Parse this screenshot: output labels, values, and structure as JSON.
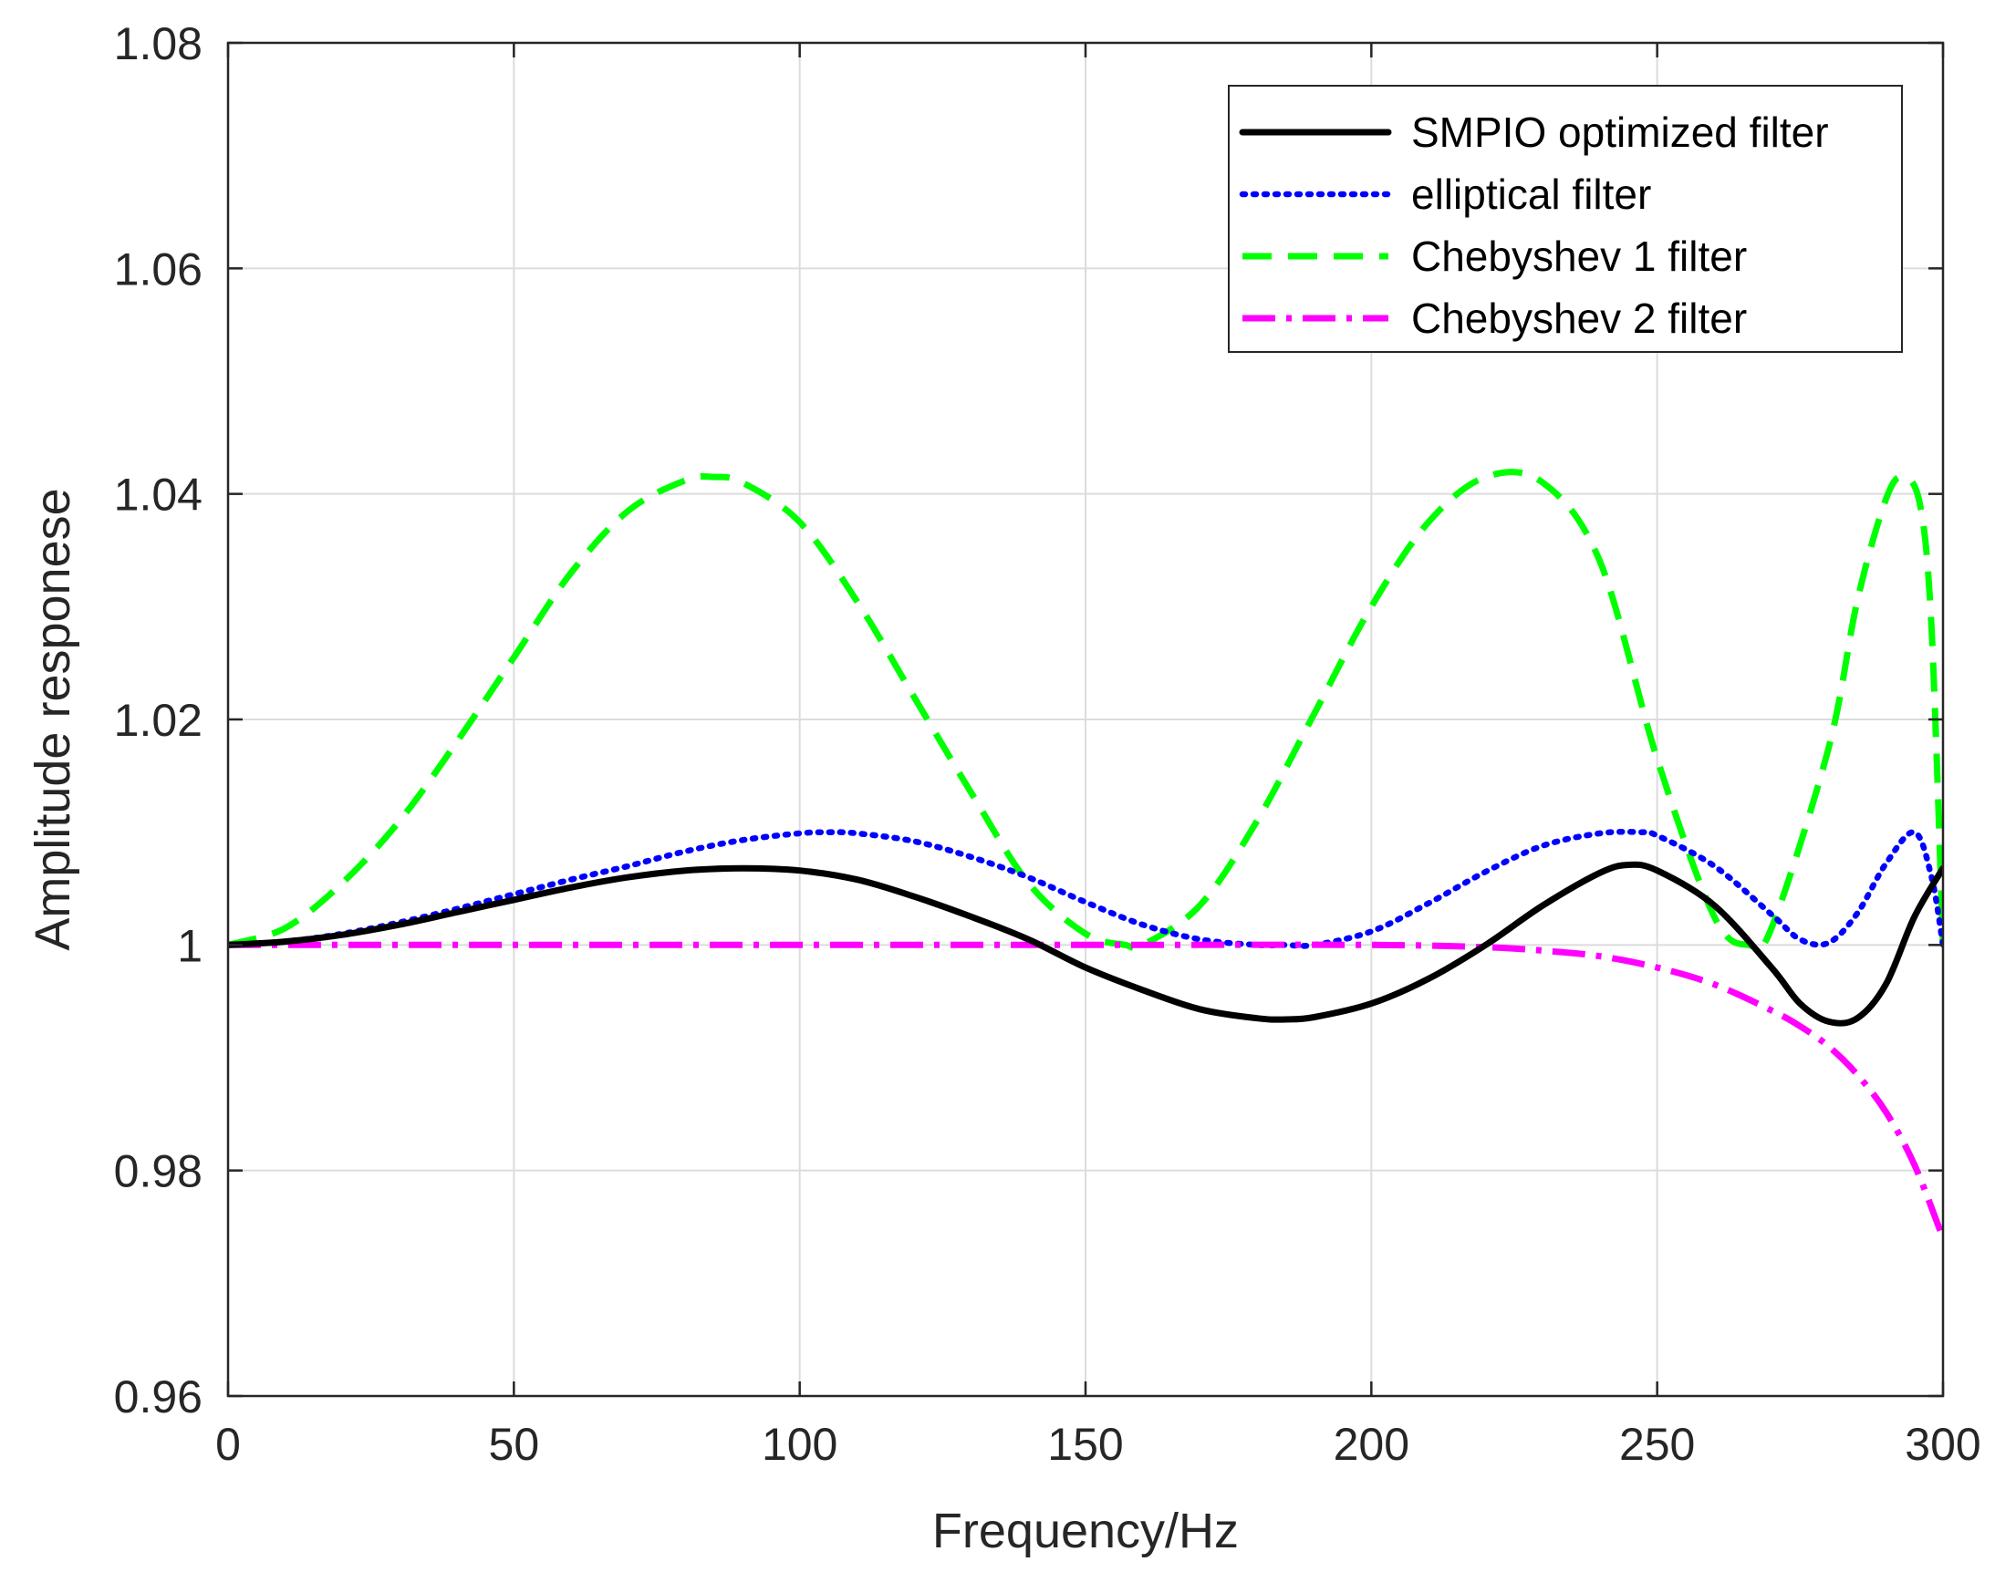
{
  "chart_data": {
    "type": "line",
    "title": "",
    "xlabel": "Frequency/Hz",
    "ylabel": "Amplitude responese",
    "xlim": [
      0,
      300
    ],
    "ylim": [
      0.96,
      1.08
    ],
    "xticks": [
      0,
      50,
      100,
      150,
      200,
      250,
      300
    ],
    "yticks": [
      0.96,
      0.98,
      1.0,
      1.02,
      1.04,
      1.06,
      1.08
    ],
    "xtick_labels": [
      "0",
      "50",
      "100",
      "150",
      "200",
      "250",
      "300"
    ],
    "ytick_labels": [
      "0.96",
      "0.98",
      "1",
      "1.02",
      "1.04",
      "1.06",
      "1.08"
    ],
    "grid": true,
    "legend_position": "top-right",
    "series": [
      {
        "name": "SMPIO optimized filter",
        "color": "#000000",
        "style": "solid",
        "x": [
          0,
          10,
          20,
          30,
          40,
          50,
          60,
          70,
          80,
          90,
          100,
          110,
          120,
          130,
          140,
          150,
          160,
          170,
          180,
          185,
          190,
          200,
          210,
          220,
          230,
          240,
          245,
          250,
          260,
          270,
          275,
          280,
          285,
          290,
          295,
          300
        ],
        "y": [
          1.0,
          1.0003,
          1.0009,
          1.0018,
          1.0029,
          1.004,
          1.0051,
          1.006,
          1.0066,
          1.0068,
          1.0066,
          1.0058,
          1.0043,
          1.0025,
          1.0005,
          0.998,
          0.996,
          0.9943,
          0.9935,
          0.9934,
          0.9936,
          0.9948,
          0.997,
          1.0,
          1.0035,
          1.0064,
          1.0071,
          1.0066,
          1.0035,
          0.998,
          0.9948,
          0.9932,
          0.9935,
          0.9965,
          1.0025,
          1.0068
        ]
      },
      {
        "name": "elliptical filter",
        "color": "#0000ff",
        "style": "dotted",
        "x": [
          0,
          10,
          20,
          30,
          40,
          50,
          60,
          70,
          80,
          90,
          100,
          105,
          110,
          120,
          130,
          140,
          150,
          160,
          170,
          180,
          185,
          190,
          200,
          210,
          220,
          230,
          240,
          247,
          250,
          260,
          270,
          275,
          280,
          285,
          290,
          295,
          298,
          300
        ],
        "y": [
          1.0,
          1.0003,
          1.001,
          1.002,
          1.0032,
          1.0045,
          1.0058,
          1.007,
          1.0083,
          1.0093,
          1.0099,
          1.01,
          1.0099,
          1.0092,
          1.0078,
          1.006,
          1.0038,
          1.0018,
          1.0005,
          1.0,
          1.0,
          1.0,
          1.0012,
          1.0037,
          1.0065,
          1.0088,
          1.0099,
          1.01,
          1.0097,
          1.007,
          1.0027,
          1.0005,
          1.0002,
          1.0028,
          1.0072,
          1.01,
          1.006,
          1.0
        ]
      },
      {
        "name": "Chebyshev 1 filter",
        "color": "#00ff00",
        "style": "dashed",
        "x": [
          0,
          10,
          20,
          30,
          40,
          50,
          60,
          70,
          80,
          85,
          90,
          100,
          110,
          120,
          130,
          140,
          150,
          157,
          160,
          170,
          180,
          190,
          200,
          210,
          220,
          230,
          240,
          250,
          260,
          266,
          270,
          280,
          285,
          290,
          293,
          296,
          298,
          300
        ],
        "y": [
          1.0,
          1.0015,
          1.0055,
          1.011,
          1.018,
          1.0255,
          1.033,
          1.0385,
          1.0412,
          1.0415,
          1.041,
          1.0375,
          1.0305,
          1.022,
          1.0135,
          1.0055,
          1.001,
          1.0,
          1.0,
          1.0035,
          1.011,
          1.0205,
          1.03,
          1.0375,
          1.0415,
          1.041,
          1.034,
          1.0165,
          1.0025,
          1.0,
          1.0015,
          1.0175,
          1.0305,
          1.0395,
          1.0415,
          1.039,
          1.028,
          1.0
        ]
      },
      {
        "name": "Chebyshev 2 filter",
        "color": "#ff00ff",
        "style": "dashdot",
        "x": [
          0,
          50,
          100,
          150,
          200,
          220,
          230,
          240,
          250,
          260,
          270,
          275,
          280,
          285,
          290,
          295,
          300
        ],
        "y": [
          1.0,
          1.0,
          1.0,
          1.0,
          1.0,
          0.9998,
          0.9995,
          0.999,
          0.998,
          0.9965,
          0.9942,
          0.9928,
          0.991,
          0.9885,
          0.9852,
          0.9805,
          0.974
        ]
      }
    ]
  }
}
